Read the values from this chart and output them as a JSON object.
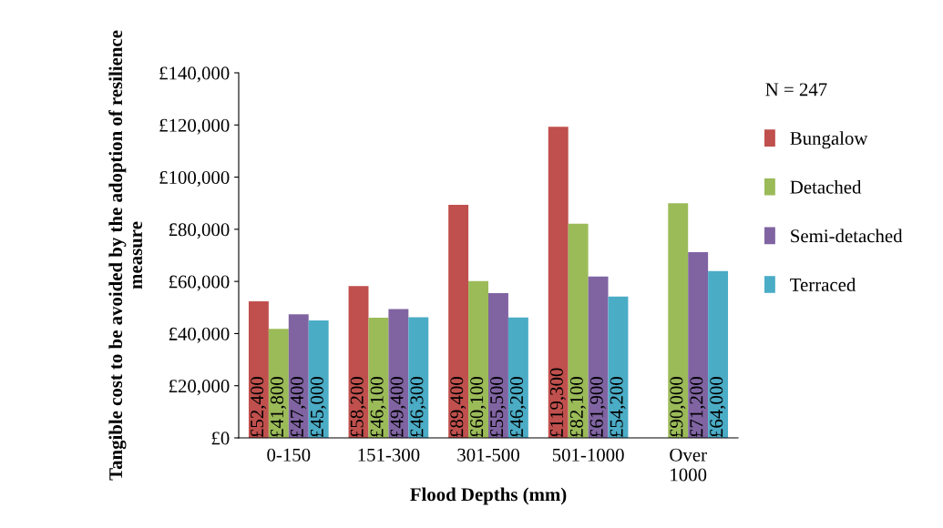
{
  "chart_data": {
    "type": "bar",
    "xlabel": "Flood Depths (mm)",
    "ylabel": "Tangible cost to be avoided by the adoption of resilience measure",
    "legend_title": "N = 247",
    "categories": [
      "0-150",
      "151-300",
      "301-500",
      "501-1000",
      "Over\n1000"
    ],
    "series": [
      {
        "name": "Bungalow",
        "color": "#c0504d",
        "values": [
          52400,
          58200,
          89400,
          119300,
          null
        ],
        "value_labels": [
          "£52,400",
          "£58,200",
          "£89,400",
          "£119,300",
          null
        ]
      },
      {
        "name": "Detached",
        "color": "#9bbb59",
        "values": [
          41800,
          46100,
          60100,
          82100,
          90000
        ],
        "value_labels": [
          "£41,800",
          "£46,100",
          "£60,100",
          "£82,100",
          "£90,000"
        ]
      },
      {
        "name": "Semi-detached",
        "color": "#8064a2",
        "values": [
          47400,
          49400,
          55500,
          61900,
          71200
        ],
        "value_labels": [
          "£47,400",
          "£49,400",
          "£55,500",
          "£61,900",
          "£71,200"
        ]
      },
      {
        "name": "Terraced",
        "color": "#4bacc6",
        "values": [
          45000,
          46300,
          46200,
          54200,
          64000
        ],
        "value_labels": [
          "£45,000",
          "£46,300",
          "£46,200",
          "£54,200",
          "£64,000"
        ]
      }
    ],
    "ylim": [
      0,
      140000
    ],
    "yticks": [
      {
        "value": 0,
        "label": "£0"
      },
      {
        "value": 20000,
        "label": "£20,000"
      },
      {
        "value": 40000,
        "label": "£40,000"
      },
      {
        "value": 60000,
        "label": "£60,000"
      },
      {
        "value": 80000,
        "label": "£80,000"
      },
      {
        "value": 100000,
        "label": "£100,000"
      },
      {
        "value": 120000,
        "label": "£120,000"
      },
      {
        "value": 140000,
        "label": "£140,000"
      }
    ],
    "grid": false,
    "legend": "right"
  }
}
